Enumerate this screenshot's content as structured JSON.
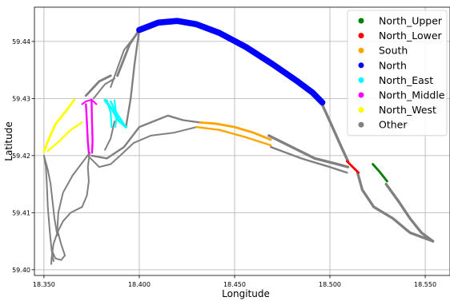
{
  "chart_data": {
    "type": "scatter",
    "title": "",
    "xlabel": "Longitude",
    "ylabel": "Latitude",
    "xlim": [
      18.345,
      18.563
    ],
    "ylim": [
      59.399,
      59.446
    ],
    "x_ticks": [
      18.35,
      18.4,
      18.45,
      18.5,
      18.55
    ],
    "x_tick_labels": [
      "18.350",
      "18.400",
      "18.450",
      "18.500",
      "18.550"
    ],
    "y_ticks": [
      59.4,
      59.41,
      59.42,
      59.43,
      59.44
    ],
    "y_tick_labels": [
      "59.40",
      "59.41",
      "59.42",
      "59.43",
      "59.44"
    ],
    "grid": true,
    "legend_position": "top-right",
    "series": [
      {
        "name": "Other",
        "color": "#808080",
        "tracks": [
          {
            "width": 0.0012,
            "points": [
              [
                18.3885,
                59.434
              ],
              [
                18.395,
                59.4395
              ],
              [
                18.4,
                59.442
              ]
            ]
          },
          {
            "width": 0.0008,
            "points": [
              [
                18.385,
                59.432
              ],
              [
                18.392,
                59.4385
              ],
              [
                18.401,
                59.4423
              ]
            ]
          },
          {
            "width": 0.0012,
            "points": [
              [
                18.372,
                59.4305
              ],
              [
                18.379,
                59.433
              ],
              [
                18.385,
                59.434
              ]
            ]
          },
          {
            "width": 0.0008,
            "points": [
              [
                18.376,
                59.43
              ],
              [
                18.382,
                59.4325
              ],
              [
                18.387,
                59.4335
              ]
            ]
          },
          {
            "width": 0.001,
            "points": [
              [
                18.4,
                59.442
              ],
              [
                18.3975,
                59.436
              ],
              [
                18.3955,
                59.43
              ],
              [
                18.393,
                59.425
              ]
            ]
          },
          {
            "width": 0.0014,
            "points": [
              [
                18.4945,
                59.43
              ],
              [
                18.5,
                59.426
              ],
              [
                18.506,
                59.4215
              ],
              [
                18.5095,
                59.419
              ]
            ]
          },
          {
            "width": 0.0014,
            "points": [
              [
                18.5145,
                59.417
              ],
              [
                18.517,
                59.414
              ],
              [
                18.523,
                59.411
              ],
              [
                18.533,
                59.409
              ],
              [
                18.542,
                59.4065
              ],
              [
                18.554,
                59.405
              ]
            ]
          },
          {
            "width": 0.0014,
            "points": [
              [
                18.5295,
                59.415
              ],
              [
                18.536,
                59.412
              ],
              [
                18.542,
                59.409
              ],
              [
                18.548,
                59.4065
              ],
              [
                18.554,
                59.405
              ]
            ]
          },
          {
            "width": 0.0014,
            "points": [
              [
                18.468,
                59.4235
              ],
              [
                18.48,
                59.4215
              ],
              [
                18.492,
                59.4195
              ],
              [
                18.504,
                59.4185
              ],
              [
                18.5095,
                59.418
              ]
            ]
          },
          {
            "width": 0.001,
            "points": [
              [
                18.469,
                59.4215
              ],
              [
                18.485,
                59.4195
              ],
              [
                18.5,
                59.418
              ],
              [
                18.509,
                59.417
              ]
            ]
          },
          {
            "width": 0.001,
            "points": [
              [
                18.432,
                59.4258
              ],
              [
                18.423,
                59.4262
              ],
              [
                18.415,
                59.427
              ],
              [
                18.409,
                59.4262
              ],
              [
                18.4,
                59.425
              ],
              [
                18.392,
                59.4215
              ],
              [
                18.383,
                59.4195
              ],
              [
                18.375,
                59.42
              ]
            ]
          },
          {
            "width": 0.0008,
            "points": [
              [
                18.43,
                59.425
              ],
              [
                18.418,
                59.424
              ],
              [
                18.406,
                59.4235
              ],
              [
                18.397,
                59.4222
              ],
              [
                18.39,
                59.42
              ],
              [
                18.385,
                59.4185
              ],
              [
                18.379,
                59.418
              ],
              [
                18.373,
                59.42
              ]
            ]
          },
          {
            "width": 0.0008,
            "points": [
              [
                18.387,
                59.426
              ],
              [
                18.385,
                59.423
              ],
              [
                18.382,
                59.421
              ]
            ]
          },
          {
            "width": 0.0008,
            "points": [
              [
                18.374,
                59.4205
              ],
              [
                18.373,
                59.418
              ],
              [
                18.3735,
                59.4155
              ],
              [
                18.3725,
                59.413
              ],
              [
                18.37,
                59.411
              ]
            ]
          },
          {
            "width": 0.0008,
            "points": [
              [
                18.37,
                59.411
              ],
              [
                18.364,
                59.41
              ],
              [
                18.36,
                59.4085
              ],
              [
                18.357,
                59.4065
              ],
              [
                18.355,
                59.4045
              ],
              [
                18.354,
                59.402
              ],
              [
                18.3538,
                59.401
              ]
            ]
          },
          {
            "width": 0.0008,
            "points": [
              [
                18.374,
                59.4205
              ],
              [
                18.365,
                59.4165
              ],
              [
                18.36,
                59.4135
              ],
              [
                18.3575,
                59.41
              ],
              [
                18.357,
                59.407
              ],
              [
                18.359,
                59.4045
              ],
              [
                18.361,
                59.4025
              ]
            ]
          },
          {
            "width": 0.0008,
            "points": [
              [
                18.35,
                59.42
              ],
              [
                18.351,
                59.418
              ],
              [
                18.3515,
                59.415
              ],
              [
                18.352,
                59.411
              ],
              [
                18.353,
                59.407
              ],
              [
                18.354,
                59.4035
              ],
              [
                18.355,
                59.4015
              ]
            ]
          },
          {
            "width": 0.0008,
            "points": [
              [
                18.35,
                59.42
              ],
              [
                18.352,
                59.4175
              ],
              [
                18.3535,
                59.415
              ],
              [
                18.3545,
                59.412
              ],
              [
                18.3555,
                59.409
              ],
              [
                18.357,
                59.406
              ]
            ]
          },
          {
            "width": 0.0008,
            "points": [
              [
                18.354,
                59.4035
              ],
              [
                18.356,
                59.402
              ],
              [
                18.359,
                59.4017
              ],
              [
                18.361,
                59.4025
              ]
            ]
          }
        ]
      },
      {
        "name": "North",
        "color": "#0000ff",
        "tracks": [
          {
            "width": 0.0032,
            "points": [
              [
                18.4,
                59.442
              ],
              [
                18.41,
                59.4433
              ],
              [
                18.42,
                59.4436
              ],
              [
                18.43,
                59.443
              ],
              [
                18.442,
                59.4415
              ],
              [
                18.456,
                59.439
              ],
              [
                18.47,
                59.436
              ],
              [
                18.483,
                59.433
              ],
              [
                18.491,
                59.431
              ],
              [
                18.496,
                59.4293
              ]
            ]
          }
        ]
      },
      {
        "name": "North_Upper",
        "color": "#008000",
        "tracks": [
          {
            "width": 0.0012,
            "points": [
              [
                18.5225,
                59.4185
              ],
              [
                18.526,
                59.4172
              ],
              [
                18.53,
                59.4155
              ]
            ]
          }
        ]
      },
      {
        "name": "North_Lower",
        "color": "#ff0000",
        "tracks": [
          {
            "width": 0.0012,
            "points": [
              [
                18.509,
                59.419
              ],
              [
                18.512,
                59.418
              ],
              [
                18.515,
                59.417
              ]
            ]
          }
        ]
      },
      {
        "name": "South",
        "color": "#ffa500",
        "tracks": [
          {
            "width": 0.0012,
            "points": [
              [
                18.432,
                59.4258
              ],
              [
                18.44,
                59.4256
              ],
              [
                18.45,
                59.425
              ],
              [
                18.46,
                59.424
              ],
              [
                18.469,
                59.4228
              ]
            ]
          },
          {
            "width": 0.001,
            "points": [
              [
                18.43,
                59.425
              ],
              [
                18.442,
                59.4245
              ],
              [
                18.455,
                59.4233
              ],
              [
                18.469,
                59.4218
              ]
            ]
          }
        ]
      },
      {
        "name": "North_East",
        "color": "#00ffff",
        "tracks": [
          {
            "width": 0.0014,
            "points": [
              [
                18.382,
                59.4297
              ],
              [
                18.386,
                59.428
              ],
              [
                18.389,
                59.4262
              ],
              [
                18.393,
                59.425
              ]
            ]
          },
          {
            "width": 0.001,
            "points": [
              [
                18.385,
                59.4295
              ],
              [
                18.388,
                59.4275
              ],
              [
                18.392,
                59.4255
              ]
            ]
          },
          {
            "width": 0.0009,
            "points": [
              [
                18.383,
                59.4297
              ],
              [
                18.385,
                59.4275
              ],
              [
                18.3855,
                59.425
              ]
            ]
          },
          {
            "width": 0.0008,
            "points": [
              [
                18.387,
                59.4297
              ],
              [
                18.388,
                59.427
              ],
              [
                18.3875,
                59.425
              ]
            ]
          }
        ]
      },
      {
        "name": "North_Middle",
        "color": "#ff00ff",
        "tracks": [
          {
            "width": 0.001,
            "points": [
              [
                18.372,
                59.429
              ],
              [
                18.3725,
                59.426
              ],
              [
                18.373,
                59.4225
              ],
              [
                18.3735,
                59.4205
              ]
            ]
          },
          {
            "width": 0.001,
            "points": [
              [
                18.375,
                59.4295
              ],
              [
                18.3752,
                59.426
              ],
              [
                18.3755,
                59.4225
              ],
              [
                18.3752,
                59.4205
              ]
            ]
          },
          {
            "width": 0.0008,
            "points": [
              [
                18.37,
                59.429
              ],
              [
                18.372,
                59.4295
              ],
              [
                18.375,
                59.4298
              ],
              [
                18.3775,
                59.429
              ]
            ]
          }
        ]
      },
      {
        "name": "North_West",
        "color": "#ffff00",
        "tracks": [
          {
            "width": 0.0012,
            "points": [
              [
                18.35,
                59.4207
              ],
              [
                18.352,
                59.4225
              ],
              [
                18.356,
                59.4255
              ],
              [
                18.362,
                59.428
              ],
              [
                18.366,
                59.4298
              ]
            ]
          },
          {
            "width": 0.001,
            "points": [
              [
                18.352,
                59.4208
              ],
              [
                18.358,
                59.4225
              ],
              [
                18.364,
                59.4245
              ],
              [
                18.37,
                59.4258
              ]
            ]
          }
        ]
      }
    ],
    "legend_entries": [
      {
        "name": "North_Upper",
        "color": "#008000"
      },
      {
        "name": "North_Lower",
        "color": "#ff0000"
      },
      {
        "name": "South",
        "color": "#ffa500"
      },
      {
        "name": "North",
        "color": "#0000ff"
      },
      {
        "name": "North_East",
        "color": "#00ffff"
      },
      {
        "name": "North_Middle",
        "color": "#ff00ff"
      },
      {
        "name": "North_West",
        "color": "#ffff00"
      },
      {
        "name": "Other",
        "color": "#808080"
      }
    ]
  }
}
